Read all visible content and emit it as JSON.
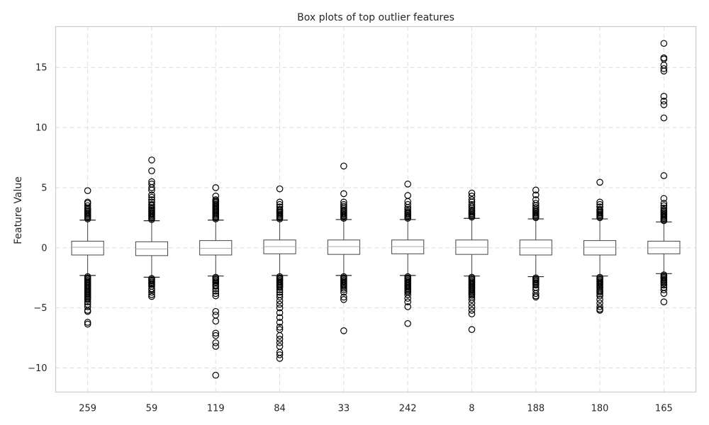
{
  "chart_data": {
    "type": "box",
    "title": "Box plots of top outlier features",
    "xlabel": "",
    "ylabel": "Feature Value",
    "ylim": [
      -12,
      18.4
    ],
    "yticks": [
      -10,
      -5,
      0,
      5,
      10,
      15
    ],
    "ytick_labels": [
      "−10",
      "−5",
      "0",
      "5",
      "10",
      "15"
    ],
    "grid": true,
    "categories": [
      "259",
      "59",
      "119",
      "84",
      "33",
      "242",
      "8",
      "188",
      "180",
      "165"
    ],
    "boxes": [
      {
        "name": "259",
        "whislo": -2.3,
        "q1": -0.6,
        "med": 0.05,
        "q3": 0.55,
        "whishi": 2.3,
        "fliers_high": [
          2.4,
          2.5,
          2.6,
          2.7,
          2.8,
          2.9,
          3.0,
          3.1,
          3.2,
          3.3,
          3.5,
          3.7,
          3.8,
          4.75
        ],
        "fliers_low": [
          -2.4,
          -2.5,
          -2.6,
          -2.7,
          -2.8,
          -2.9,
          -3.0,
          -3.1,
          -3.2,
          -3.3,
          -3.4,
          -3.5,
          -3.6,
          -3.7,
          -3.8,
          -3.9,
          -4.0,
          -4.1,
          -4.2,
          -4.3,
          -4.5,
          -4.7,
          -4.9,
          -5.2,
          -5.3,
          -6.2,
          -6.35
        ]
      },
      {
        "name": "59",
        "whislo": -2.45,
        "q1": -0.65,
        "med": -0.1,
        "q3": 0.5,
        "whishi": 2.25,
        "fliers_high": [
          2.35,
          2.45,
          2.55,
          2.65,
          2.75,
          2.85,
          2.95,
          3.05,
          3.15,
          3.25,
          3.35,
          3.5,
          3.6,
          3.8,
          4.0,
          4.2,
          4.4,
          4.8,
          5.0,
          5.3,
          5.5,
          6.4,
          7.3
        ],
        "fliers_low": [
          -2.55,
          -2.65,
          -2.75,
          -2.85,
          -2.95,
          -3.05,
          -3.2,
          -3.4,
          -3.5,
          -3.7,
          -3.9,
          -4.05
        ]
      },
      {
        "name": "119",
        "whislo": -2.35,
        "q1": -0.6,
        "med": -0.05,
        "q3": 0.6,
        "whishi": 2.3,
        "fliers_high": [
          2.4,
          2.5,
          2.6,
          2.7,
          2.8,
          2.9,
          3.0,
          3.1,
          3.2,
          3.3,
          3.4,
          3.5,
          3.6,
          3.7,
          3.8,
          3.9,
          4.0,
          4.3,
          5.0
        ],
        "fliers_low": [
          -2.45,
          -2.55,
          -2.65,
          -2.75,
          -2.85,
          -2.95,
          -3.1,
          -3.2,
          -3.4,
          -3.6,
          -3.8,
          -4.0,
          -5.3,
          -5.6,
          -6.1,
          -7.1,
          -7.3,
          -7.9,
          -8.2,
          -10.6
        ]
      },
      {
        "name": "84",
        "whislo": -2.3,
        "q1": -0.5,
        "med": 0.1,
        "q3": 0.65,
        "whishi": 2.3,
        "fliers_high": [
          2.4,
          2.5,
          2.6,
          2.7,
          2.8,
          2.9,
          3.0,
          3.1,
          3.2,
          3.4,
          3.6,
          3.8,
          4.9
        ],
        "fliers_low": [
          -2.4,
          -2.5,
          -2.6,
          -2.7,
          -2.8,
          -2.9,
          -3.0,
          -3.1,
          -3.2,
          -3.3,
          -3.5,
          -3.7,
          -3.9,
          -4.1,
          -4.4,
          -4.7,
          -5.0,
          -5.4,
          -5.8,
          -6.2,
          -6.6,
          -6.8,
          -7.3,
          -7.6,
          -7.9,
          -8.2,
          -8.7,
          -8.9,
          -9.2
        ]
      },
      {
        "name": "33",
        "whislo": -2.3,
        "q1": -0.55,
        "med": 0.1,
        "q3": 0.65,
        "whishi": 2.35,
        "fliers_high": [
          2.45,
          2.55,
          2.65,
          2.75,
          2.85,
          2.95,
          3.05,
          3.15,
          3.3,
          3.45,
          3.6,
          3.8,
          4.5,
          6.8
        ],
        "fliers_low": [
          -2.4,
          -2.5,
          -2.6,
          -2.7,
          -2.8,
          -2.9,
          -3.0,
          -3.1,
          -3.2,
          -3.35,
          -3.5,
          -3.7,
          -4.1,
          -4.3,
          -6.9
        ]
      },
      {
        "name": "242",
        "whislo": -2.3,
        "q1": -0.5,
        "med": 0.1,
        "q3": 0.65,
        "whishi": 2.35,
        "fliers_high": [
          2.45,
          2.55,
          2.65,
          2.75,
          2.85,
          2.95,
          3.05,
          3.2,
          3.35,
          3.6,
          3.85,
          4.35,
          5.3
        ],
        "fliers_low": [
          -2.4,
          -2.5,
          -2.6,
          -2.7,
          -2.8,
          -2.9,
          -3.0,
          -3.1,
          -3.2,
          -3.3,
          -3.4,
          -3.5,
          -3.6,
          -3.7,
          -3.9,
          -4.2,
          -4.5,
          -4.9,
          -6.3
        ]
      },
      {
        "name": "8",
        "whislo": -2.35,
        "q1": -0.55,
        "med": 0.05,
        "q3": 0.65,
        "whishi": 2.45,
        "fliers_high": [
          2.55,
          2.65,
          2.75,
          2.85,
          2.95,
          3.05,
          3.15,
          3.3,
          3.45,
          3.6,
          3.8,
          4.0,
          4.3,
          4.55
        ],
        "fliers_low": [
          -2.45,
          -2.55,
          -2.65,
          -2.75,
          -2.85,
          -2.95,
          -3.05,
          -3.15,
          -3.25,
          -3.35,
          -3.45,
          -3.55,
          -3.65,
          -3.75,
          -3.85,
          -3.95,
          -4.1,
          -4.3,
          -4.6,
          -4.9,
          -5.2,
          -5.5,
          -6.8
        ]
      },
      {
        "name": "188",
        "whislo": -2.4,
        "q1": -0.6,
        "med": 0.0,
        "q3": 0.65,
        "whishi": 2.4,
        "fliers_high": [
          2.5,
          2.6,
          2.7,
          2.8,
          2.9,
          3.0,
          3.1,
          3.2,
          3.35,
          3.5,
          3.7,
          4.0,
          4.4,
          4.8
        ],
        "fliers_low": [
          -2.5,
          -2.6,
          -2.7,
          -2.8,
          -2.9,
          -3.0,
          -3.1,
          -3.3,
          -3.5,
          -3.8,
          -4.0,
          -4.1
        ]
      },
      {
        "name": "180",
        "whislo": -2.35,
        "q1": -0.6,
        "med": 0.05,
        "q3": 0.6,
        "whishi": 2.4,
        "fliers_high": [
          2.5,
          2.6,
          2.7,
          2.8,
          2.9,
          3.0,
          3.1,
          3.2,
          3.4,
          3.6,
          3.8,
          5.45
        ],
        "fliers_low": [
          -2.45,
          -2.55,
          -2.65,
          -2.75,
          -2.85,
          -2.95,
          -3.05,
          -3.15,
          -3.25,
          -3.35,
          -3.5,
          -3.6,
          -3.7,
          -3.85,
          -4.0,
          -4.3,
          -4.6,
          -4.9,
          -5.1,
          -5.2
        ]
      },
      {
        "name": "165",
        "whislo": -2.15,
        "q1": -0.5,
        "med": 0.0,
        "q3": 0.55,
        "whishi": 2.15,
        "fliers_high": [
          2.25,
          2.35,
          2.45,
          2.55,
          2.65,
          2.75,
          2.85,
          2.95,
          3.05,
          3.15,
          3.3,
          3.5,
          3.7,
          4.1,
          6.0,
          10.8,
          11.9,
          12.2,
          12.6,
          14.7,
          14.9,
          15.2,
          15.7,
          15.8,
          17.0
        ],
        "fliers_low": [
          -2.25,
          -2.35,
          -2.45,
          -2.55,
          -2.65,
          -2.75,
          -2.85,
          -2.95,
          -3.1,
          -3.3,
          -3.5,
          -3.8,
          -4.5
        ]
      }
    ]
  }
}
